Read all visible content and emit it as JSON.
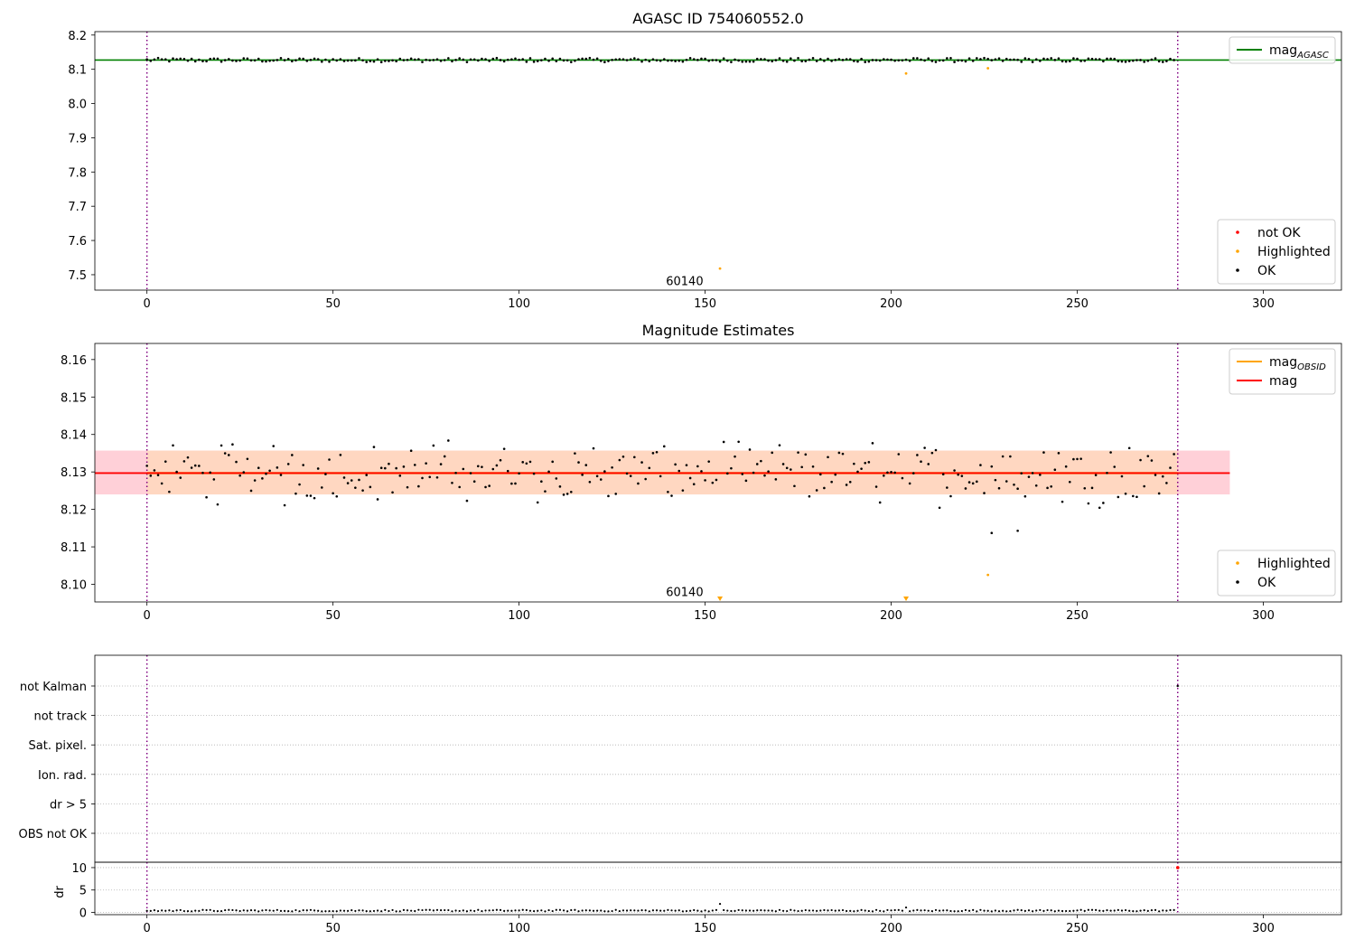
{
  "colors": {
    "ok": "#000000",
    "not_ok": "#ff0000",
    "highlighted": "#ffa500",
    "agasc_line": "#008000",
    "mag_line": "#ff0000",
    "mag_obsid_line": "#ffa500",
    "obsid_marker": "#800080",
    "mag_band": "#ffc0cb",
    "obsid_band": "#ffdab9"
  },
  "chart_data": [
    {
      "type": "scatter",
      "title": "AGASC ID 754060552.0",
      "xlabel": "",
      "ylabel": "",
      "xlim": [
        -14,
        321
      ],
      "ylim": [
        7.455,
        8.21
      ],
      "xticks": [
        0,
        50,
        100,
        150,
        200,
        250,
        300
      ],
      "yticks": [
        7.5,
        7.6,
        7.7,
        7.8,
        7.9,
        8.0,
        8.1,
        8.2
      ],
      "ytick_decimals": 1,
      "grid": false,
      "obsid_markers": [
        0,
        277
      ],
      "obsid_label": {
        "text": "60140",
        "x": 144.5,
        "y": 7.48
      },
      "reference_lines": [
        {
          "name": "magAGASC",
          "value": 8.127,
          "xmax": 321
        }
      ],
      "series": [
        {
          "name": "OK",
          "kind": "ok_band",
          "count": 277,
          "center": 8.127,
          "amplitude": 0.006
        },
        {
          "name": "Highlighted",
          "kind": "points",
          "x": [
            154,
            204,
            226
          ],
          "y": [
            7.518,
            8.088,
            8.103
          ]
        },
        {
          "name": "not OK",
          "kind": "points",
          "x": [],
          "y": []
        }
      ],
      "legends": [
        {
          "position": "top-right",
          "entries": [
            {
              "label_main": "mag",
              "label_sub": "AGASC",
              "swatch": "line",
              "color": "#008000"
            }
          ]
        },
        {
          "position": "bottom-right",
          "entries": [
            {
              "label_main": "not OK",
              "label_sub": "",
              "swatch": "dot",
              "color": "#ff0000"
            },
            {
              "label_main": "Highlighted",
              "label_sub": "",
              "swatch": "dot",
              "color": "#ffa500"
            },
            {
              "label_main": "OK",
              "label_sub": "",
              "swatch": "dot",
              "color": "#000000"
            }
          ]
        }
      ]
    },
    {
      "type": "scatter",
      "title": "Magnitude Estimates",
      "xlabel": "",
      "ylabel": "",
      "xlim": [
        -14,
        321
      ],
      "ylim": [
        8.0953,
        8.1643
      ],
      "xticks": [
        0,
        50,
        100,
        150,
        200,
        250,
        300
      ],
      "yticks": [
        8.1,
        8.11,
        8.12,
        8.13,
        8.14,
        8.15,
        8.16
      ],
      "ytick_decimals": 2,
      "grid": false,
      "obsid_markers": [
        0,
        277
      ],
      "obsid_label": {
        "text": "60140",
        "x": 144.5,
        "y": 8.0978
      },
      "bands": [
        {
          "name": "mag band",
          "ymin": 8.124,
          "ymax": 8.1357,
          "xmin": -14,
          "xmax": 291,
          "color": "#ffc0cb"
        },
        {
          "name": "mag OBSID band",
          "ymin": 8.124,
          "ymax": 8.1357,
          "xmin": 0,
          "xmax": 277,
          "color": "#ffdab9"
        }
      ],
      "reference_lines": [
        {
          "name": "magOBSID",
          "value": 8.1297,
          "xmin": 0,
          "xmax": 277,
          "color": "#ffa500"
        },
        {
          "name": "mag",
          "value": 8.1297,
          "xmin": -14,
          "xmax": 291,
          "color": "#ff0000"
        }
      ],
      "series": [
        {
          "name": "OK",
          "kind": "ok_scatter",
          "count": 277,
          "center": 8.1297,
          "spread": 0.0075
        },
        {
          "name": "Highlighted",
          "kind": "points",
          "x": [
            226
          ],
          "y": [
            8.1025
          ]
        },
        {
          "name": "Highlighted off-scale",
          "kind": "triangles",
          "x": [
            154,
            204
          ],
          "y": [
            8.0953,
            8.0953
          ]
        }
      ],
      "legends": [
        {
          "position": "top-right",
          "entries": [
            {
              "label_main": "mag",
              "label_sub": "OBSID",
              "swatch": "line",
              "color": "#ffa500"
            },
            {
              "label_main": "mag",
              "label_sub": "",
              "swatch": "line",
              "color": "#ff0000"
            }
          ]
        },
        {
          "position": "bottom-right",
          "entries": [
            {
              "label_main": "Highlighted",
              "label_sub": "",
              "swatch": "dot",
              "color": "#ffa500"
            },
            {
              "label_main": "OK",
              "label_sub": "",
              "swatch": "dot",
              "color": "#000000"
            }
          ]
        }
      ]
    },
    {
      "type": "scatter",
      "title": "",
      "xlabel": "",
      "ylabel": "",
      "xlim": [
        -14,
        321
      ],
      "flag_labels": [
        "not Kalman",
        "not track",
        "Sat. pixel.",
        "Ion. rad.",
        "dr > 5",
        "OBS not OK"
      ],
      "obsid_markers": [
        0,
        277
      ],
      "flag_points": [
        {
          "flag": "not Kalman",
          "x": 277
        }
      ]
    },
    {
      "type": "scatter",
      "title": "",
      "xlabel": "",
      "ylabel": "dr",
      "xlim": [
        -14,
        321
      ],
      "ylim": [
        -0.5,
        11.2
      ],
      "xticks": [
        0,
        50,
        100,
        150,
        200,
        250,
        300
      ],
      "yticks": [
        0,
        5,
        10
      ],
      "ytick_decimals": 0,
      "grid": true,
      "obsid_markers": [
        0,
        277
      ],
      "series": [
        {
          "name": "dr",
          "kind": "dr_scatter",
          "count": 277,
          "base": 0.4
        },
        {
          "name": "dr spikes",
          "kind": "points",
          "x": [
            154,
            204
          ],
          "y": [
            1.9,
            1.1
          ]
        },
        {
          "name": "dr red",
          "kind": "points",
          "x": [
            277
          ],
          "y": [
            10.0
          ]
        }
      ]
    }
  ]
}
